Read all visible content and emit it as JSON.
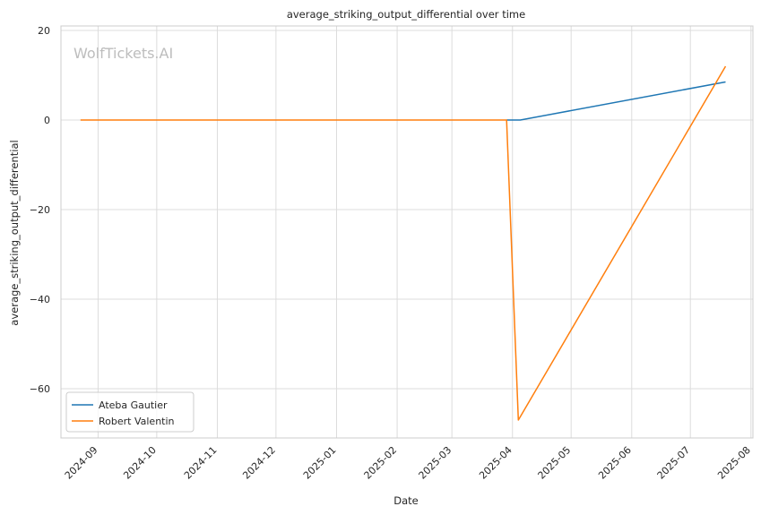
{
  "chart_data": {
    "type": "line",
    "title": "average_striking_output_differential over time",
    "xlabel": "Date",
    "ylabel": "average_striking_output_differential",
    "watermark": "WolfTickets.AI",
    "x_ticks": [
      "2024-09-01",
      "2024-10-01",
      "2024-11-01",
      "2024-12-01",
      "2025-01-01",
      "2025-02-01",
      "2025-03-01",
      "2025-04-01",
      "2025-05-01",
      "2025-06-01",
      "2025-07-01",
      "2025-08-01"
    ],
    "x_tick_labels": [
      "2024-09",
      "2024-10",
      "2024-11",
      "2024-12",
      "2025-01",
      "2025-02",
      "2025-03",
      "2025-04",
      "2025-05",
      "2025-06",
      "2025-07",
      "2025-08"
    ],
    "xlim": [
      "2024-08-13",
      "2025-08-02"
    ],
    "y_ticks": [
      20,
      0,
      -20,
      -40,
      -60
    ],
    "y_tick_labels": [
      "20",
      "0",
      "−20",
      "−40",
      "−60"
    ],
    "ylim": [
      -71,
      21
    ],
    "grid": true,
    "legend_position": "lower-left",
    "series": [
      {
        "name": "Ateba Gautier",
        "color": "#1f77b4",
        "points": [
          {
            "x": "2025-03-29",
            "y": 0
          },
          {
            "x": "2025-04-05",
            "y": 0
          },
          {
            "x": "2025-07-19",
            "y": 8.5
          }
        ]
      },
      {
        "name": "Robert Valentin",
        "color": "#ff7f0e",
        "points": [
          {
            "x": "2024-08-23",
            "y": 0
          },
          {
            "x": "2025-03-29",
            "y": 0
          },
          {
            "x": "2025-04-04",
            "y": -67
          },
          {
            "x": "2025-07-19",
            "y": 12
          }
        ]
      }
    ]
  }
}
